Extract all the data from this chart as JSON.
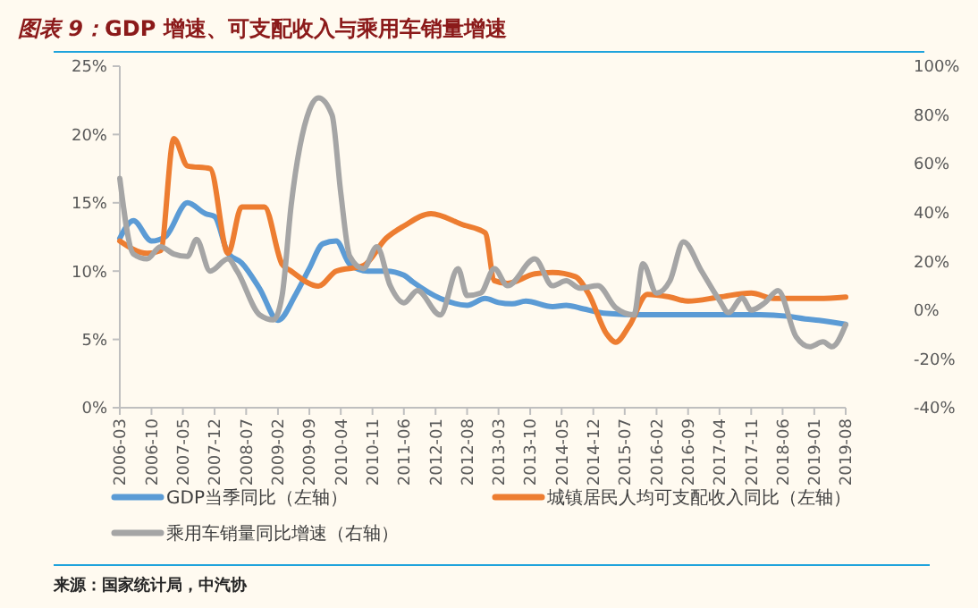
{
  "chart_data": {
    "type": "line",
    "title": "图表 9：GDP 增速、可支配收入与乘用车销量增速",
    "annotations": [
      "来源：国家统计局，中汽协"
    ],
    "xlim": [
      "2006-03",
      "2019-08"
    ],
    "xticks": [
      "2006-03",
      "2006-10",
      "2007-05",
      "2007-12",
      "2008-07",
      "2009-02",
      "2009-09",
      "2010-04",
      "2010-11",
      "2011-06",
      "2012-01",
      "2012-08",
      "2013-03",
      "2013-10",
      "2014-05",
      "2014-12",
      "2015-07",
      "2016-02",
      "2016-09",
      "2017-04",
      "2017-11",
      "2018-06",
      "2019-01",
      "2019-08"
    ],
    "ylim": [
      0,
      25
    ],
    "yticks": [
      {
        "value": 0,
        "label": "0%"
      },
      {
        "value": 5,
        "label": "5%"
      },
      {
        "value": 10,
        "label": "10%"
      },
      {
        "value": 15,
        "label": "15%"
      },
      {
        "value": 20,
        "label": "20%"
      },
      {
        "value": 25,
        "label": "25%"
      }
    ],
    "y2lim": [
      -40,
      100
    ],
    "y2ticks": [
      {
        "value": -40,
        "label": "-40%"
      },
      {
        "value": -20,
        "label": "-20%"
      },
      {
        "value": 0,
        "label": "0%"
      },
      {
        "value": 20,
        "label": "20%"
      },
      {
        "value": 40,
        "label": "40%"
      },
      {
        "value": 60,
        "label": "60%"
      },
      {
        "value": 80,
        "label": "80%"
      },
      {
        "value": 100,
        "label": "100%"
      }
    ],
    "grid": false,
    "legend": "bottom",
    "marker": "none",
    "line_style": "solid",
    "series": [
      {
        "name": "GDP当季同比（左轴）",
        "color": "#5b9bd5",
        "x": [
          "2006-03",
          "2006-06",
          "2006-10",
          "2007-01",
          "2007-06",
          "2007-10",
          "2007-12",
          "2008-03",
          "2008-06",
          "2008-10",
          "2009-02",
          "2009-06",
          "2009-09",
          "2009-12",
          "2010-03",
          "2010-06",
          "2010-10",
          "2011-02",
          "2011-06",
          "2011-08",
          "2012-02",
          "2012-08",
          "2012-12",
          "2013-03",
          "2013-06",
          "2013-09",
          "2014-03",
          "2014-06",
          "2014-09",
          "2015-03",
          "2015-11",
          "2016-12",
          "2018-01",
          "2018-07",
          "2018-11",
          "2019-02",
          "2019-08"
        ],
        "values": [
          12.4,
          13.7,
          12.2,
          12.5,
          15.0,
          14.2,
          14.0,
          11.3,
          10.6,
          8.7,
          6.4,
          8.3,
          10.2,
          12.0,
          12.2,
          10.5,
          10.0,
          10.0,
          9.7,
          9.2,
          8.0,
          7.5,
          8.0,
          7.7,
          7.6,
          7.8,
          7.4,
          7.5,
          7.3,
          6.9,
          6.8,
          6.8,
          6.8,
          6.7,
          6.5,
          6.4,
          6.1
        ]
      },
      {
        "name": "城镇居民人均可支配收入同比（左轴）",
        "color": "#ed7d31",
        "x": [
          "2006-03",
          "2006-09",
          "2006-12",
          "2007-03",
          "2007-06",
          "2007-11",
          "2008-03",
          "2008-06",
          "2008-11",
          "2009-03",
          "2009-05",
          "2009-11",
          "2010-03",
          "2010-09",
          "2011-02",
          "2011-06",
          "2011-12",
          "2012-07",
          "2012-12",
          "2013-02",
          "2013-05",
          "2013-11",
          "2014-03",
          "2014-08",
          "2014-11",
          "2015-03",
          "2015-05",
          "2015-08",
          "2015-12",
          "2016-05",
          "2016-09",
          "2017-04",
          "2017-11",
          "2018-04",
          "2019-02",
          "2019-08"
        ],
        "values": [
          12.2,
          11.3,
          11.5,
          19.7,
          17.7,
          17.5,
          11.3,
          14.7,
          14.7,
          10.5,
          10.0,
          8.9,
          10.0,
          10.4,
          12.4,
          13.3,
          14.2,
          13.4,
          12.8,
          9.3,
          9.1,
          9.8,
          9.9,
          9.6,
          8.3,
          5.4,
          4.8,
          6.0,
          8.3,
          8.1,
          7.8,
          8.1,
          8.4,
          8.0,
          8.0,
          8.1
        ]
      },
      {
        "name": "乘用车销量同比增速（右轴）",
        "color": "#a5a5a5",
        "axis": "y2",
        "x": [
          "2006-03",
          "2006-06",
          "2006-09",
          "2006-12",
          "2007-03",
          "2007-06",
          "2007-08",
          "2007-11",
          "2008-03",
          "2008-05",
          "2008-10",
          "2009-01",
          "2009-03",
          "2009-05",
          "2009-09",
          "2009-11",
          "2010-02",
          "2010-04",
          "2010-06",
          "2010-09",
          "2010-12",
          "2011-03",
          "2011-06",
          "2011-09",
          "2012-02",
          "2012-06",
          "2012-08",
          "2012-11",
          "2013-02",
          "2013-05",
          "2013-11",
          "2014-03",
          "2014-06",
          "2014-09",
          "2015-01",
          "2015-05",
          "2015-09",
          "2015-11",
          "2016-02",
          "2016-05",
          "2016-08",
          "2016-12",
          "2017-04",
          "2017-06",
          "2017-09",
          "2017-11",
          "2018-02",
          "2018-05",
          "2018-09",
          "2018-12",
          "2019-03",
          "2019-05",
          "2019-08"
        ],
        "values": [
          54,
          23,
          21,
          26,
          23,
          22,
          29,
          16,
          21,
          16,
          -2,
          -4,
          6,
          43,
          82,
          87,
          80,
          48,
          22,
          17,
          26,
          10,
          3,
          8,
          -2,
          17,
          6,
          7,
          17,
          10,
          21,
          10,
          12,
          9,
          10,
          1,
          -2,
          19,
          7,
          12,
          28,
          16,
          4,
          -1,
          5,
          0,
          3,
          8,
          -11,
          -15,
          -13,
          -15,
          -6
        ]
      }
    ]
  }
}
